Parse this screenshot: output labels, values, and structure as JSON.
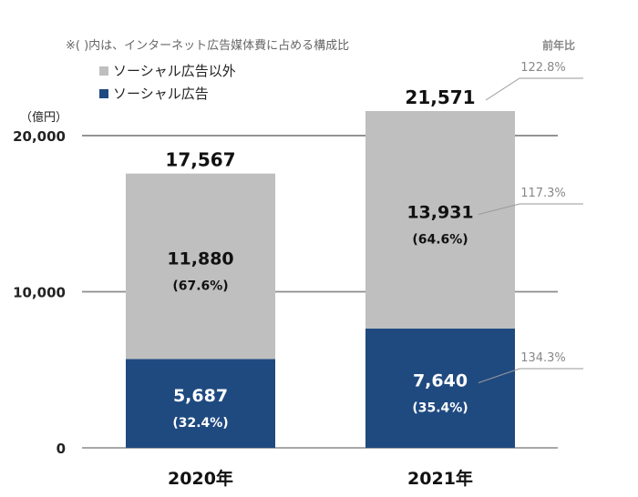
{
  "chart_data": {
    "type": "bar",
    "stacked": true,
    "note": "※( )内は、インターネット広告媒体費に占める構成比",
    "unit_label": "（億円）",
    "categories": [
      "2020年",
      "2021年"
    ],
    "series": [
      {
        "name": "ソーシャル広告",
        "values": [
          5687,
          7640
        ],
        "value_labels": [
          "5,687",
          "7,640"
        ],
        "share_labels": [
          "(32.4%)",
          "(35.4%)"
        ],
        "yoy": [
          "",
          "134.3%"
        ],
        "color": "#1f4a80"
      },
      {
        "name": "ソーシャル広告以外",
        "values": [
          11880,
          13931
        ],
        "value_labels": [
          "11,880",
          "13,931"
        ],
        "share_labels": [
          "(67.6%)",
          "(64.6%)"
        ],
        "yoy": [
          "",
          "117.3%"
        ],
        "color": "#bfbfbf"
      }
    ],
    "totals": [
      17567,
      21571
    ],
    "total_labels": [
      "17,567",
      "21,571"
    ],
    "total_yoy": "122.8%",
    "yoy_title": "前年比",
    "y_ticks": [
      0,
      10000,
      20000
    ],
    "y_tick_labels": [
      "0",
      "10,000",
      "20,000"
    ],
    "ylim": [
      0,
      21571
    ],
    "grid": true,
    "legend_position": "top-left"
  }
}
